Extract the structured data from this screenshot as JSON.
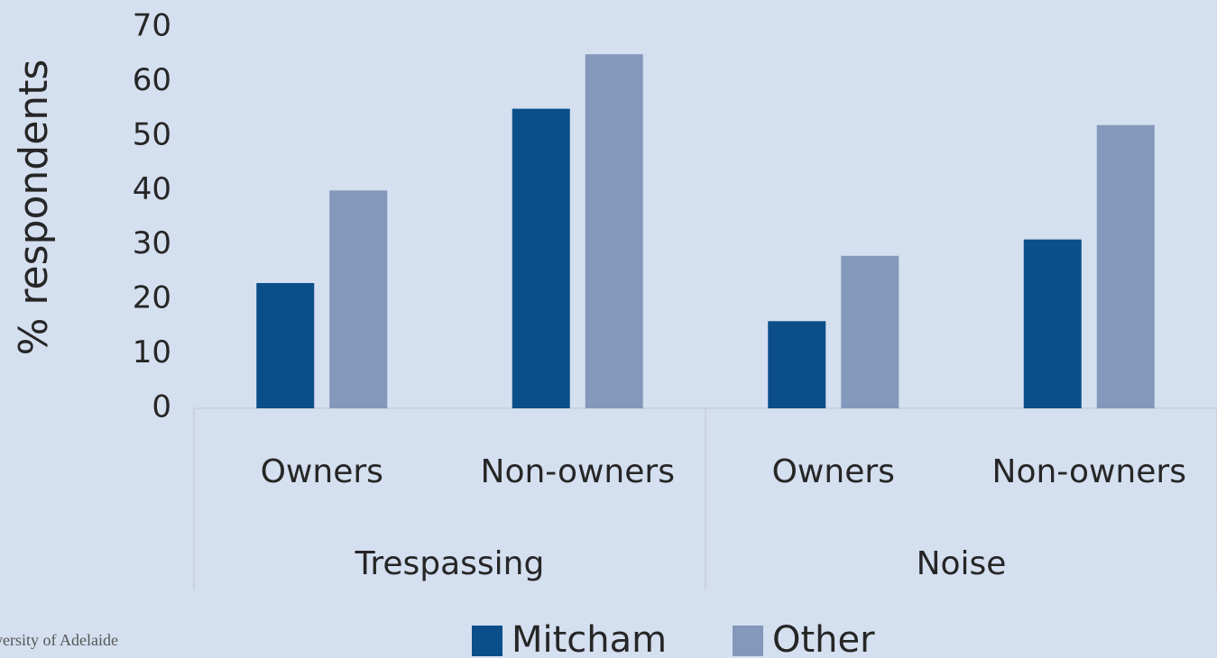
{
  "chart_data": {
    "type": "bar",
    "y_label": "% respondents",
    "categories": [
      "Owners",
      "Non-owners",
      "Owners",
      "Non-owners"
    ],
    "groups": [
      "Trespassing",
      "Noise"
    ],
    "series": [
      {
        "name": "Mitcham",
        "color": "#0b4f8a",
        "values": [
          23,
          55,
          16,
          31
        ]
      },
      {
        "name": "Other",
        "color": "#8498bb",
        "values": [
          40,
          65,
          28,
          52
        ]
      }
    ],
    "ylim": [
      0,
      70
    ],
    "yticks": [
      0,
      10,
      20,
      30,
      40,
      50,
      60,
      70
    ],
    "grid": false,
    "legend": "bottom",
    "footer": "versity of Adelaide"
  }
}
